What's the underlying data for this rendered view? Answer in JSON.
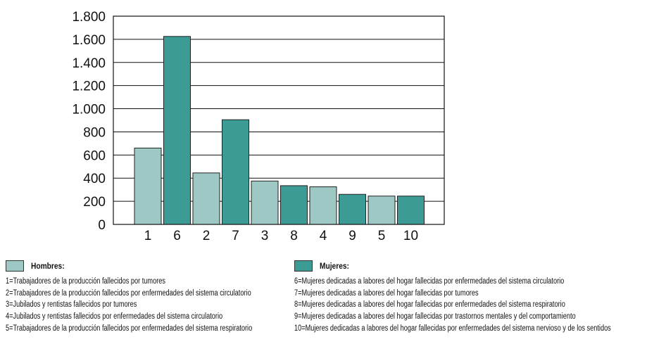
{
  "chart_data": {
    "type": "bar",
    "categories": [
      "1",
      "6",
      "2",
      "7",
      "3",
      "8",
      "4",
      "9",
      "5",
      "10"
    ],
    "values": [
      660,
      1625,
      445,
      905,
      375,
      335,
      325,
      260,
      245,
      245
    ],
    "groups": [
      "hombres",
      "mujeres",
      "hombres",
      "mujeres",
      "hombres",
      "mujeres",
      "hombres",
      "mujeres",
      "hombres",
      "mujeres"
    ],
    "ylim": [
      0,
      1800
    ],
    "yticks": [
      0,
      200,
      400,
      600,
      800,
      1000,
      1200,
      1400,
      1600,
      1800
    ],
    "ytick_labels": [
      "0",
      "200",
      "400",
      "600",
      "800",
      "1.000",
      "1.200",
      "1.400",
      "1.600",
      "1.800"
    ],
    "grid": true,
    "colors": {
      "hombres": "#9ec8c4",
      "mujeres": "#3d9b96"
    }
  },
  "legend": {
    "hombres": {
      "title": "Hombres:",
      "items": [
        "1=Trabajadores de la producción fallecidos por tumores",
        "2=Trabajadores de la producción fallecidos por enfermedades del sistema circulatorio",
        "3=Jubilados y rentistas fallecidos por tumores",
        "4=Jubilados y rentistas fallecidos por enfermedades del sistema circulatorio",
        "5=Trabajadores de la producción fallecidos por enfermedades del sistema respiratorio"
      ]
    },
    "mujeres": {
      "title": "Mujeres:",
      "items": [
        "6=Mujeres dedicadas a labores del hogar fallecidas por enfermedades del sistema circulatorio",
        "7=Mujeres dedicadas a labores del hogar fallecidas por tumores",
        "8=Mujeres dedicadas a labores del hogar fallecidas por enfermedades del sistema respiratorio",
        "9=Mujeres dedicadas a labores del hogar fallecidas por trastornos mentales y del comportamiento",
        "10=Mujeres dedicadas a labores del hogar fallecidas por enfermedades del sistema nervioso y de los sentidos"
      ]
    }
  }
}
